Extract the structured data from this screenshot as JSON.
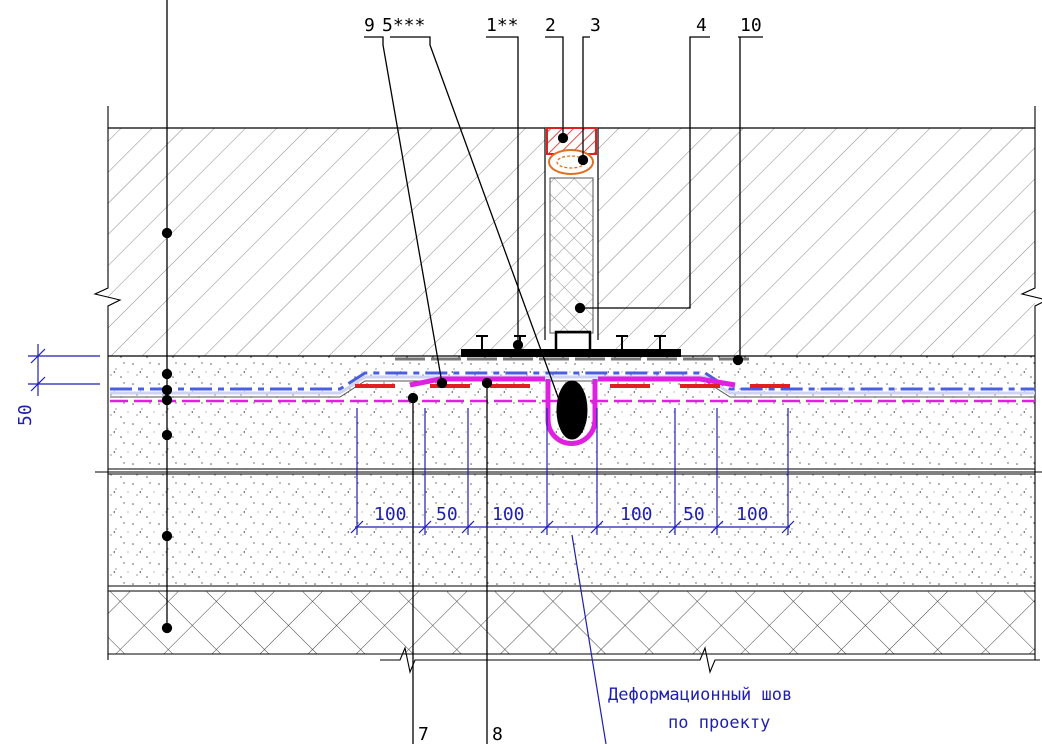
{
  "callouts": {
    "c9": "9",
    "c5": "5***",
    "c1": "1**",
    "c2": "2",
    "c3": "3",
    "c4": "4",
    "c10": "10",
    "c7": "7",
    "c8": "8"
  },
  "dimensions": {
    "left_depth": "50",
    "bottom": [
      "100",
      "50",
      "100",
      "100",
      "50",
      "100"
    ]
  },
  "note": {
    "line1": "Деформационный шов",
    "line2": "по проекту"
  },
  "colors": {
    "dimension": "#1f1fb0",
    "seal_red": "#e02020",
    "cord_orange": "#e07020",
    "membrane_magenta": "#e020e0",
    "membrane_blue": "#4a5ee0",
    "tube_black": "#000000"
  }
}
